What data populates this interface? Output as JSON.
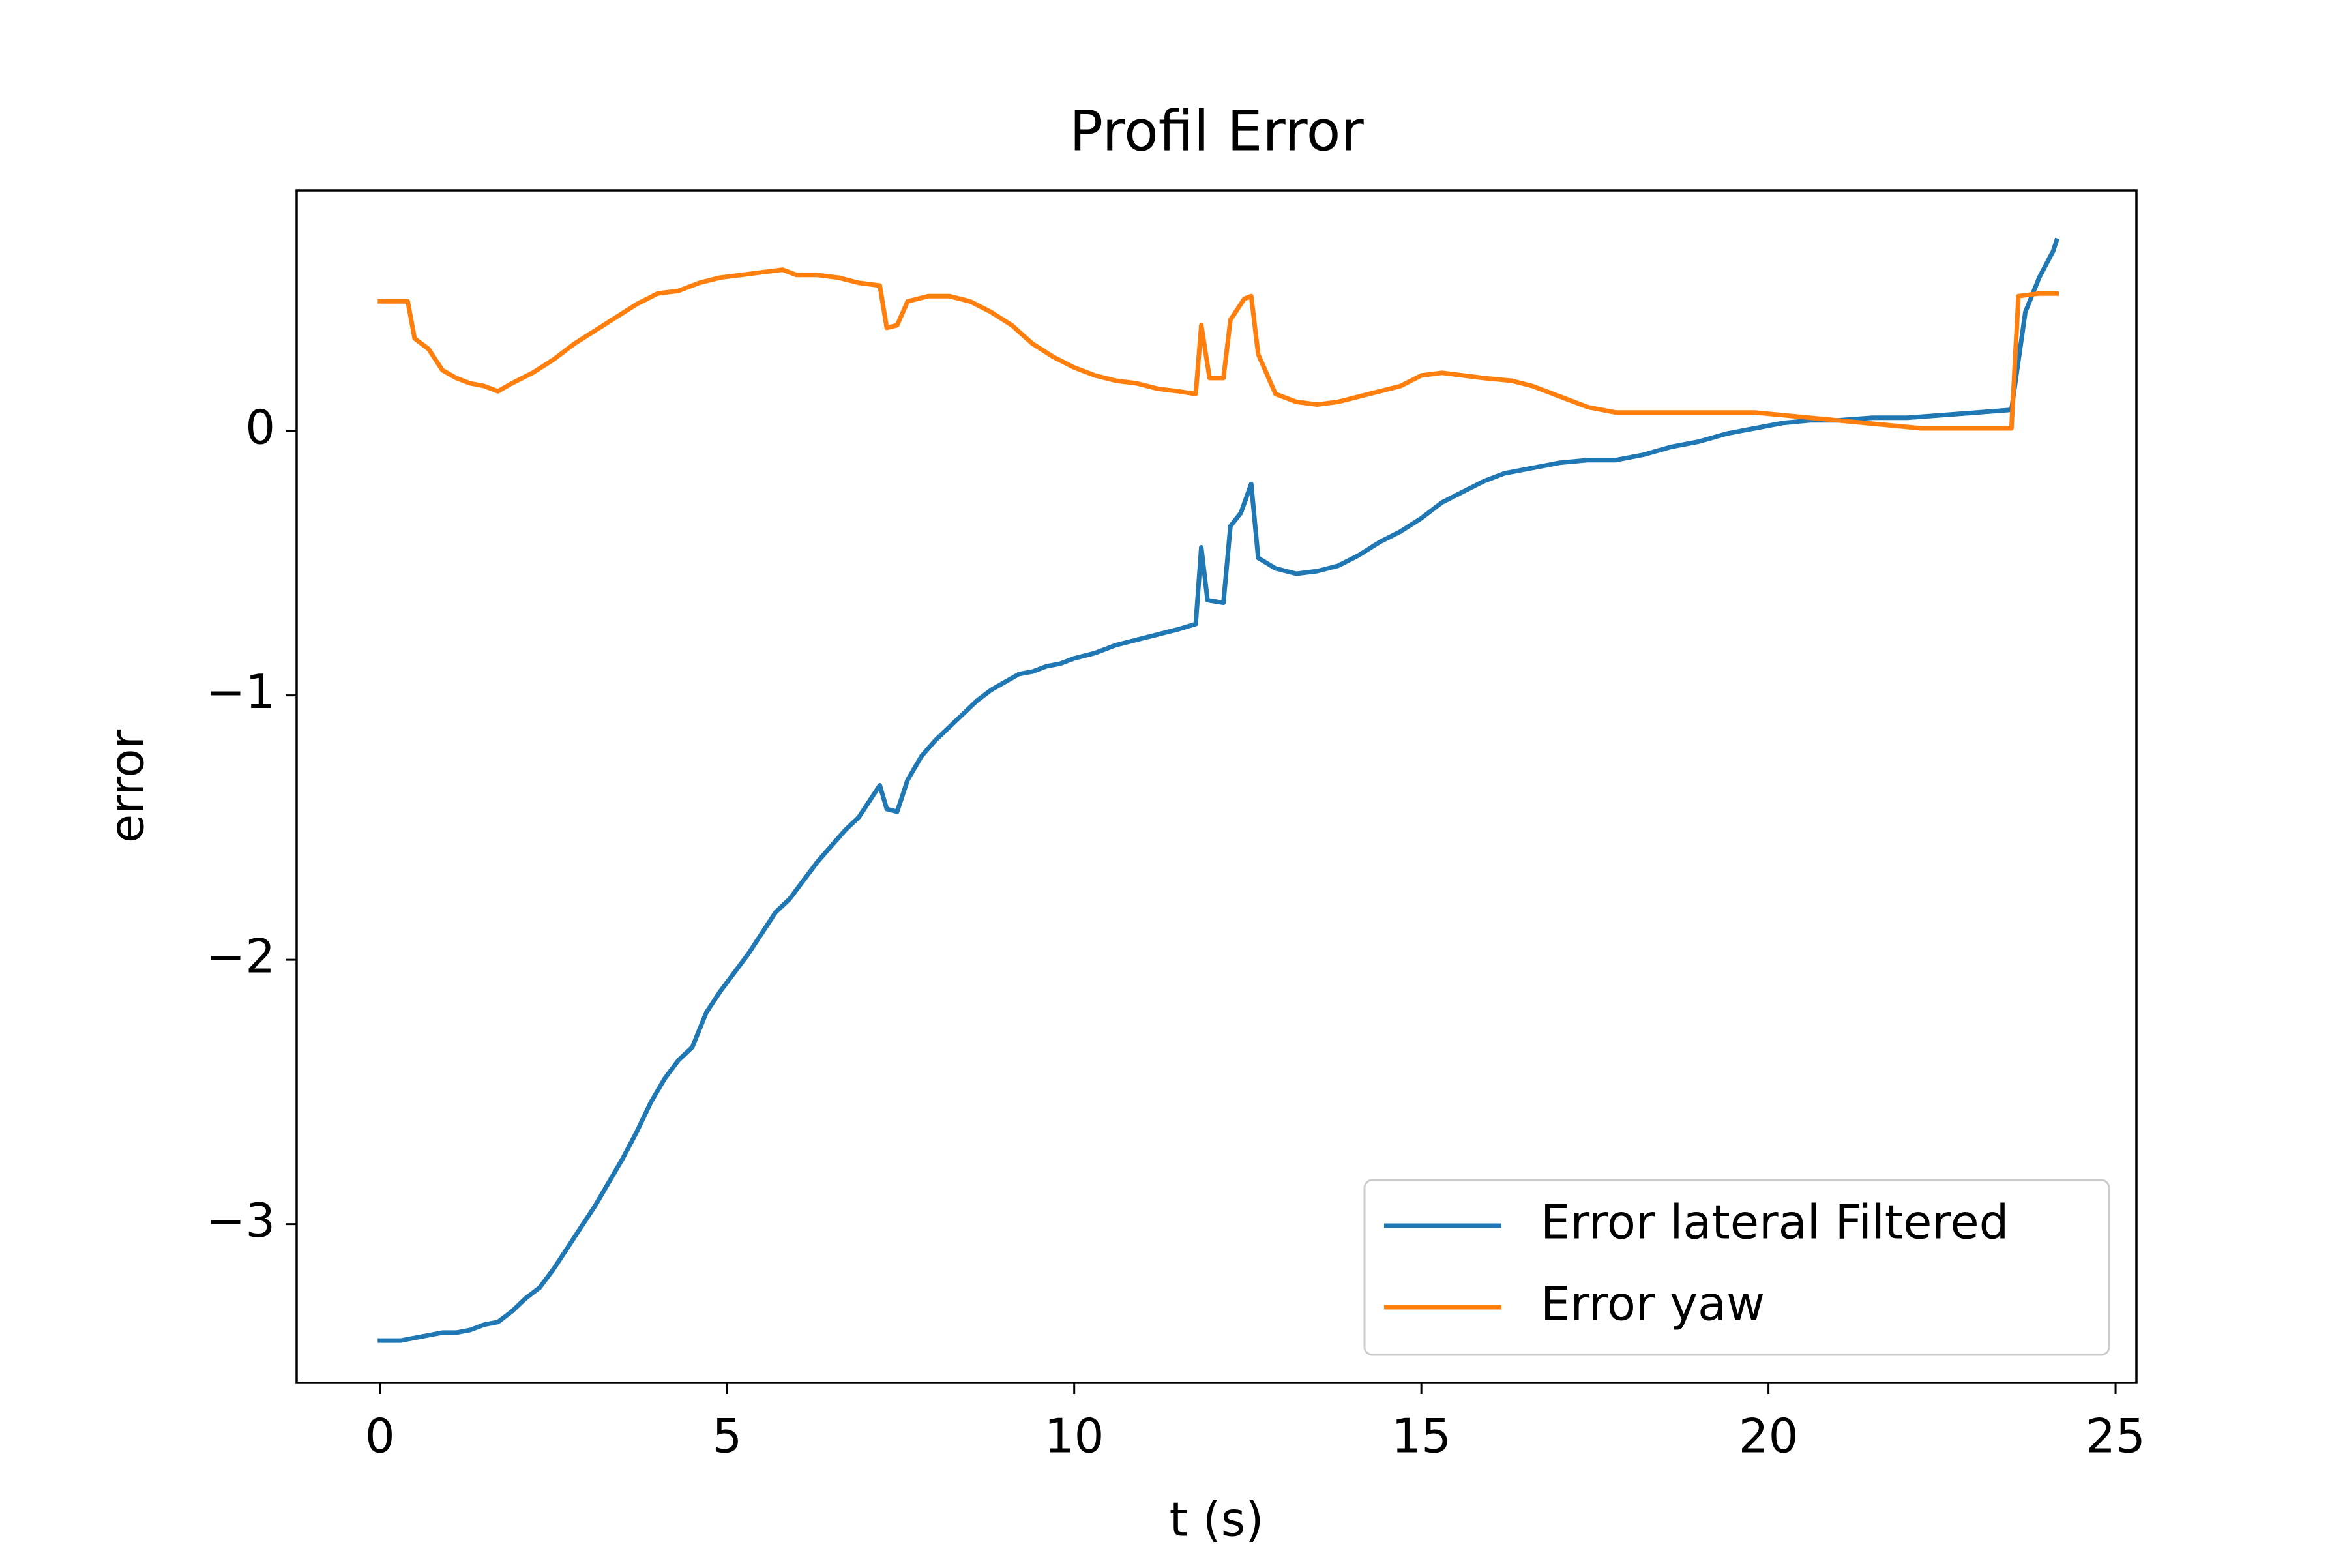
{
  "chart_data": {
    "type": "line",
    "title": "Profil Error",
    "xlabel": "t (s)",
    "ylabel": "error",
    "xlim": [
      -1.2,
      25.3
    ],
    "ylim": [
      -3.6,
      0.91
    ],
    "xticks": [
      0,
      5,
      10,
      15,
      20,
      25
    ],
    "xtick_labels": [
      "0",
      "5",
      "10",
      "15",
      "20",
      "25"
    ],
    "yticks": [
      -3,
      -2,
      -1,
      0
    ],
    "ytick_labels": [
      "−3",
      "−2",
      "−1",
      "0"
    ],
    "grid": false,
    "legend_position": "lower-right",
    "series": [
      {
        "name": "Error lateral Filtered",
        "color": "#1f77b4",
        "points": [
          [
            0.0,
            -3.44
          ],
          [
            0.3,
            -3.44
          ],
          [
            0.5,
            -3.43
          ],
          [
            0.7,
            -3.42
          ],
          [
            0.9,
            -3.41
          ],
          [
            1.1,
            -3.41
          ],
          [
            1.3,
            -3.4
          ],
          [
            1.5,
            -3.38
          ],
          [
            1.7,
            -3.37
          ],
          [
            1.9,
            -3.33
          ],
          [
            2.1,
            -3.28
          ],
          [
            2.3,
            -3.24
          ],
          [
            2.5,
            -3.17
          ],
          [
            2.7,
            -3.09
          ],
          [
            2.9,
            -3.01
          ],
          [
            3.1,
            -2.93
          ],
          [
            3.3,
            -2.84
          ],
          [
            3.5,
            -2.75
          ],
          [
            3.7,
            -2.65
          ],
          [
            3.9,
            -2.54
          ],
          [
            4.1,
            -2.45
          ],
          [
            4.3,
            -2.38
          ],
          [
            4.5,
            -2.33
          ],
          [
            4.7,
            -2.2
          ],
          [
            4.9,
            -2.12
          ],
          [
            5.1,
            -2.05
          ],
          [
            5.3,
            -1.98
          ],
          [
            5.5,
            -1.9
          ],
          [
            5.7,
            -1.82
          ],
          [
            5.9,
            -1.77
          ],
          [
            6.1,
            -1.7
          ],
          [
            6.3,
            -1.63
          ],
          [
            6.5,
            -1.57
          ],
          [
            6.7,
            -1.51
          ],
          [
            6.9,
            -1.46
          ],
          [
            7.05,
            -1.4
          ],
          [
            7.2,
            -1.34
          ],
          [
            7.3,
            -1.43
          ],
          [
            7.45,
            -1.44
          ],
          [
            7.6,
            -1.32
          ],
          [
            7.8,
            -1.23
          ],
          [
            8.0,
            -1.17
          ],
          [
            8.2,
            -1.12
          ],
          [
            8.4,
            -1.07
          ],
          [
            8.6,
            -1.02
          ],
          [
            8.8,
            -0.98
          ],
          [
            9.0,
            -0.95
          ],
          [
            9.2,
            -0.92
          ],
          [
            9.4,
            -0.91
          ],
          [
            9.6,
            -0.89
          ],
          [
            9.8,
            -0.88
          ],
          [
            10.0,
            -0.86
          ],
          [
            10.3,
            -0.84
          ],
          [
            10.6,
            -0.81
          ],
          [
            10.9,
            -0.79
          ],
          [
            11.2,
            -0.77
          ],
          [
            11.5,
            -0.75
          ],
          [
            11.75,
            -0.73
          ],
          [
            11.83,
            -0.44
          ],
          [
            11.92,
            -0.64
          ],
          [
            12.15,
            -0.65
          ],
          [
            12.25,
            -0.36
          ],
          [
            12.4,
            -0.31
          ],
          [
            12.55,
            -0.2
          ],
          [
            12.65,
            -0.48
          ],
          [
            12.9,
            -0.52
          ],
          [
            13.2,
            -0.54
          ],
          [
            13.5,
            -0.53
          ],
          [
            13.8,
            -0.51
          ],
          [
            14.1,
            -0.47
          ],
          [
            14.4,
            -0.42
          ],
          [
            14.7,
            -0.38
          ],
          [
            15.0,
            -0.33
          ],
          [
            15.3,
            -0.27
          ],
          [
            15.6,
            -0.23
          ],
          [
            15.9,
            -0.19
          ],
          [
            16.2,
            -0.16
          ],
          [
            16.6,
            -0.14
          ],
          [
            17.0,
            -0.12
          ],
          [
            17.4,
            -0.11
          ],
          [
            17.8,
            -0.11
          ],
          [
            18.2,
            -0.09
          ],
          [
            18.6,
            -0.06
          ],
          [
            19.0,
            -0.04
          ],
          [
            19.4,
            -0.01
          ],
          [
            19.8,
            0.01
          ],
          [
            20.2,
            0.03
          ],
          [
            20.6,
            0.04
          ],
          [
            21.0,
            0.04
          ],
          [
            21.5,
            0.05
          ],
          [
            22.0,
            0.05
          ],
          [
            22.5,
            0.06
          ],
          [
            23.0,
            0.07
          ],
          [
            23.5,
            0.08
          ],
          [
            23.7,
            0.45
          ],
          [
            23.9,
            0.58
          ],
          [
            24.1,
            0.68
          ],
          [
            24.15,
            0.72
          ]
        ]
      },
      {
        "name": "Error yaw",
        "color": "#ff7f0e",
        "points": [
          [
            0.0,
            0.49
          ],
          [
            0.4,
            0.49
          ],
          [
            0.5,
            0.35
          ],
          [
            0.7,
            0.31
          ],
          [
            0.9,
            0.23
          ],
          [
            1.1,
            0.2
          ],
          [
            1.3,
            0.18
          ],
          [
            1.5,
            0.17
          ],
          [
            1.7,
            0.15
          ],
          [
            1.9,
            0.18
          ],
          [
            2.2,
            0.22
          ],
          [
            2.5,
            0.27
          ],
          [
            2.8,
            0.33
          ],
          [
            3.1,
            0.38
          ],
          [
            3.4,
            0.43
          ],
          [
            3.7,
            0.48
          ],
          [
            4.0,
            0.52
          ],
          [
            4.3,
            0.53
          ],
          [
            4.6,
            0.56
          ],
          [
            4.9,
            0.58
          ],
          [
            5.2,
            0.59
          ],
          [
            5.5,
            0.6
          ],
          [
            5.8,
            0.61
          ],
          [
            6.0,
            0.59
          ],
          [
            6.3,
            0.59
          ],
          [
            6.6,
            0.58
          ],
          [
            6.9,
            0.56
          ],
          [
            7.2,
            0.55
          ],
          [
            7.3,
            0.39
          ],
          [
            7.45,
            0.4
          ],
          [
            7.6,
            0.49
          ],
          [
            7.9,
            0.51
          ],
          [
            8.2,
            0.51
          ],
          [
            8.5,
            0.49
          ],
          [
            8.8,
            0.45
          ],
          [
            9.1,
            0.4
          ],
          [
            9.4,
            0.33
          ],
          [
            9.7,
            0.28
          ],
          [
            10.0,
            0.24
          ],
          [
            10.3,
            0.21
          ],
          [
            10.6,
            0.19
          ],
          [
            10.9,
            0.18
          ],
          [
            11.2,
            0.16
          ],
          [
            11.5,
            0.15
          ],
          [
            11.75,
            0.14
          ],
          [
            11.83,
            0.4
          ],
          [
            11.95,
            0.2
          ],
          [
            12.15,
            0.2
          ],
          [
            12.25,
            0.42
          ],
          [
            12.45,
            0.5
          ],
          [
            12.55,
            0.51
          ],
          [
            12.65,
            0.29
          ],
          [
            12.9,
            0.14
          ],
          [
            13.2,
            0.11
          ],
          [
            13.5,
            0.1
          ],
          [
            13.8,
            0.11
          ],
          [
            14.1,
            0.13
          ],
          [
            14.4,
            0.15
          ],
          [
            14.7,
            0.17
          ],
          [
            15.0,
            0.21
          ],
          [
            15.3,
            0.22
          ],
          [
            15.6,
            0.21
          ],
          [
            15.9,
            0.2
          ],
          [
            16.3,
            0.19
          ],
          [
            16.6,
            0.17
          ],
          [
            17.0,
            0.13
          ],
          [
            17.4,
            0.09
          ],
          [
            17.8,
            0.07
          ],
          [
            18.2,
            0.07
          ],
          [
            18.6,
            0.07
          ],
          [
            19.0,
            0.07
          ],
          [
            19.4,
            0.07
          ],
          [
            19.8,
            0.07
          ],
          [
            20.2,
            0.06
          ],
          [
            20.6,
            0.05
          ],
          [
            21.0,
            0.04
          ],
          [
            21.4,
            0.03
          ],
          [
            21.8,
            0.02
          ],
          [
            22.2,
            0.01
          ],
          [
            22.6,
            0.01
          ],
          [
            23.0,
            0.01
          ],
          [
            23.5,
            0.01
          ],
          [
            23.6,
            0.51
          ],
          [
            23.9,
            0.52
          ],
          [
            24.15,
            0.52
          ]
        ]
      }
    ]
  }
}
